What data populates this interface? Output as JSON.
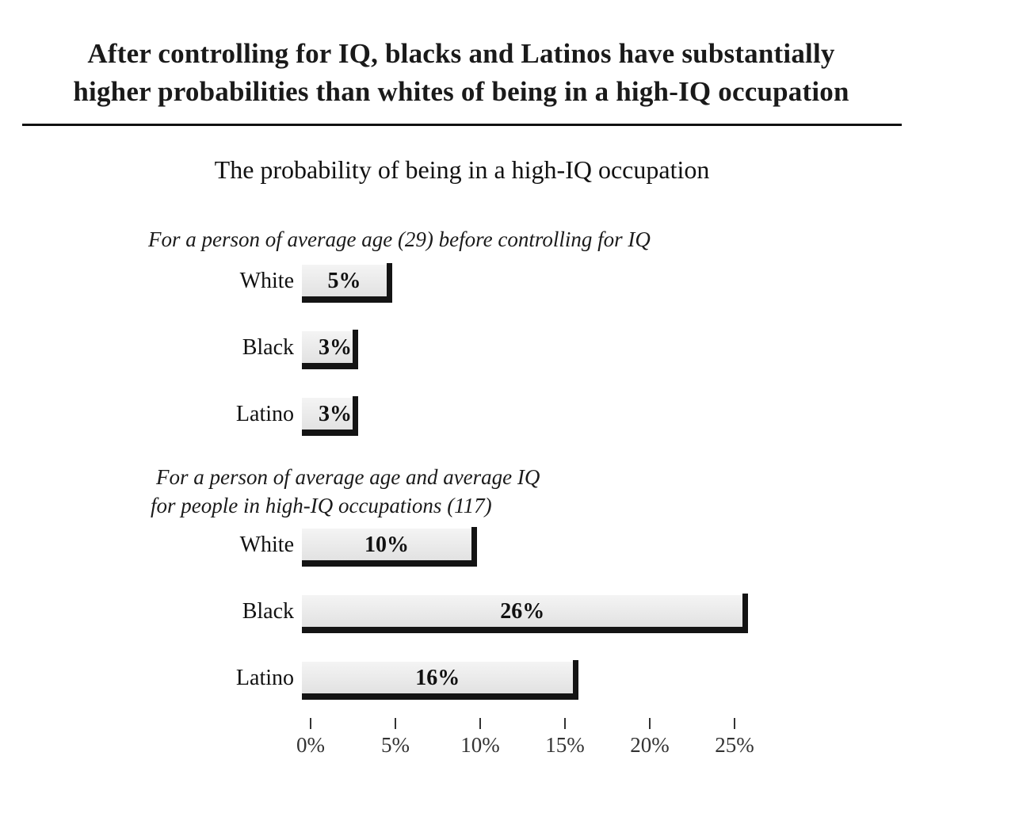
{
  "headline": {
    "line1": "After controlling for IQ, blacks and Latinos have substantially",
    "line2": "higher probabilities than whites of being in a high-IQ occupation"
  },
  "chart_data": {
    "type": "bar",
    "orientation": "horizontal",
    "title": "The probability of being in a high-IQ occupation",
    "categories": [
      "White",
      "Black",
      "Latino"
    ],
    "groups": [
      {
        "label": "For a person of average age (29) before controlling for IQ",
        "values": [
          5,
          3,
          3
        ],
        "value_labels": [
          "5%",
          "3%",
          "3%"
        ]
      },
      {
        "label_lines": [
          "For a person of average age and average IQ",
          "for people in high-IQ occupations (117)"
        ],
        "values": [
          10,
          26,
          16
        ],
        "value_labels": [
          "10%",
          "26%",
          "16%"
        ]
      }
    ],
    "xlim": [
      0,
      25
    ],
    "xticks": [
      0,
      5,
      10,
      15,
      20,
      25
    ],
    "xtick_labels": [
      "0%",
      "5%",
      "10%",
      "15%",
      "20%",
      "25%"
    ],
    "grid": false,
    "legend": "none",
    "bar_color": "#e8e8e8",
    "edge_color": "#141414"
  }
}
